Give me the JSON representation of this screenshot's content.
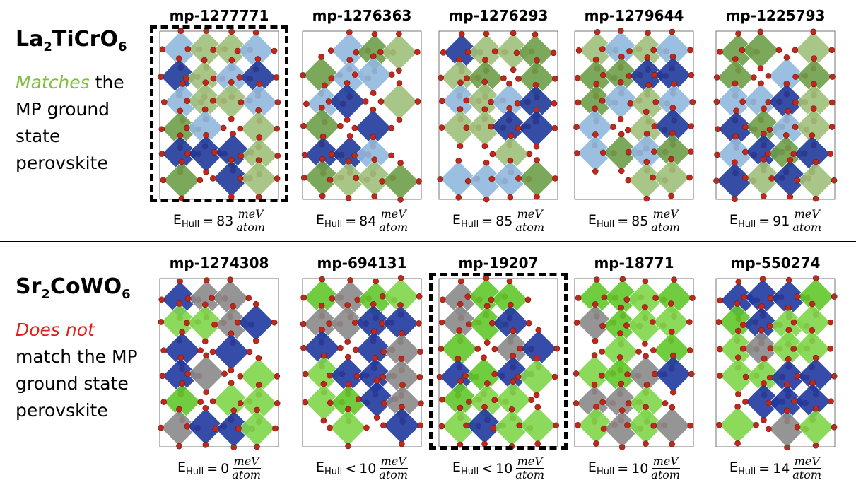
{
  "rows": [
    {
      "formula_parts": [
        "La",
        "2",
        "TiCrO",
        "6"
      ],
      "note_highlight": "Matches",
      "note_rest": "the MP ground state perovskite",
      "structures": [
        {
          "id": "mp-1277771",
          "relation": "=",
          "value": 83,
          "selected": true
        },
        {
          "id": "mp-1276363",
          "relation": "=",
          "value": 84,
          "selected": false
        },
        {
          "id": "mp-1276293",
          "relation": "=",
          "value": 85,
          "selected": false
        },
        {
          "id": "mp-1279644",
          "relation": "=",
          "value": 85,
          "selected": false
        },
        {
          "id": "mp-1225793",
          "relation": "=",
          "value": 91,
          "selected": false
        }
      ]
    },
    {
      "formula_parts": [
        "Sr",
        "2",
        "CoWO",
        "6"
      ],
      "note_highlight": "Does not",
      "note_rest": "match the MP ground state perovskite",
      "structures": [
        {
          "id": "mp-1274308",
          "relation": "=",
          "value": 0,
          "selected": false
        },
        {
          "id": "mp-694131",
          "relation": "<",
          "value": 10,
          "selected": false
        },
        {
          "id": "mp-19207",
          "relation": "<",
          "value": 10,
          "selected": true
        },
        {
          "id": "mp-18771",
          "relation": "=",
          "value": 10,
          "selected": false
        },
        {
          "id": "mp-550274",
          "relation": "=",
          "value": 14,
          "selected": false
        }
      ]
    }
  ],
  "ehull_symbol": "E",
  "ehull_subscript": "Hull",
  "unit_numerator": "meV",
  "unit_denominator": "atom"
}
